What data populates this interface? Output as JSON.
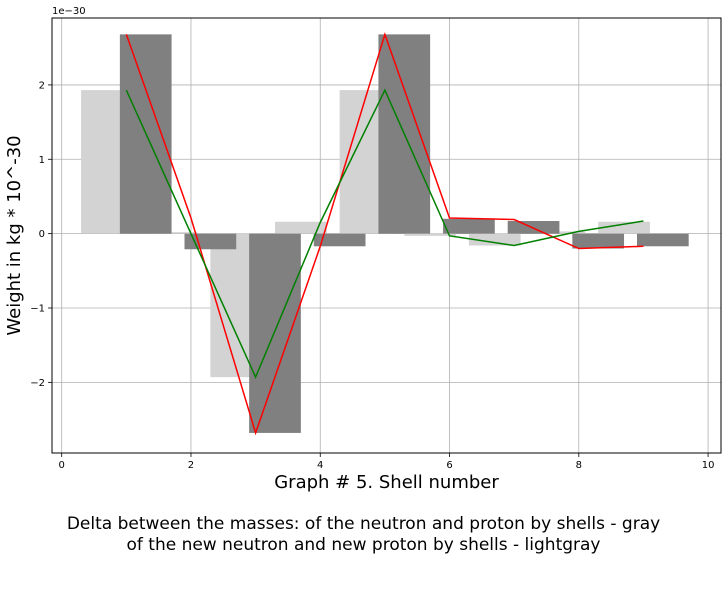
{
  "chart_data": {
    "type": "bar",
    "xlabel": "Graph # 5. Shell number",
    "ylabel": "Weight in kg * 10^-30",
    "y_offset_label": "1e−30",
    "xlim": [
      -0.15,
      10.2
    ],
    "ylim": [
      -2.95,
      2.9
    ],
    "x_ticks": [
      0,
      2,
      4,
      6,
      8,
      10
    ],
    "x_tick_labels": [
      "0",
      "2",
      "4",
      "6",
      "8",
      "10"
    ],
    "y_ticks": [
      -2,
      -1,
      0,
      1,
      2
    ],
    "y_tick_labels": [
      "−2",
      "−1",
      "0",
      "1",
      "2"
    ],
    "grid": true,
    "bar_width": 0.8,
    "x": [
      1,
      2,
      3,
      4,
      5,
      6,
      7,
      8,
      9
    ],
    "series": [
      {
        "values": [
          1.93,
          0.02,
          -1.93,
          0.16,
          1.93,
          -0.03,
          -0.16,
          0.03,
          0.16
        ],
        "bar_x_offset": -0.3,
        "color": "#d3d3d3"
      },
      {
        "values": [
          2.68,
          -0.21,
          -2.68,
          -0.17,
          2.68,
          0.2,
          0.17,
          -0.2,
          -0.17
        ],
        "bar_x_offset": 0.3,
        "color": "#808080"
      }
    ],
    "lines": [
      {
        "x": [
          1,
          2,
          3,
          4,
          5,
          6,
          7,
          8,
          9
        ],
        "values": [
          2.68,
          0.21,
          -2.68,
          -0.17,
          2.68,
          0.21,
          0.19,
          -0.2,
          -0.17
        ],
        "color": "#ff0000"
      },
      {
        "x": [
          1,
          2,
          3,
          4,
          5,
          6,
          7,
          8,
          9
        ],
        "values": [
          1.93,
          0.0,
          -1.93,
          0.15,
          1.93,
          -0.03,
          -0.16,
          0.03,
          0.17
        ],
        "color": "#008000"
      }
    ]
  },
  "caption": {
    "line1": "Delta between the masses: of the neutron and proton by shells - gray",
    "line2": "of the new neutron and new proton by shells - lightgray"
  }
}
